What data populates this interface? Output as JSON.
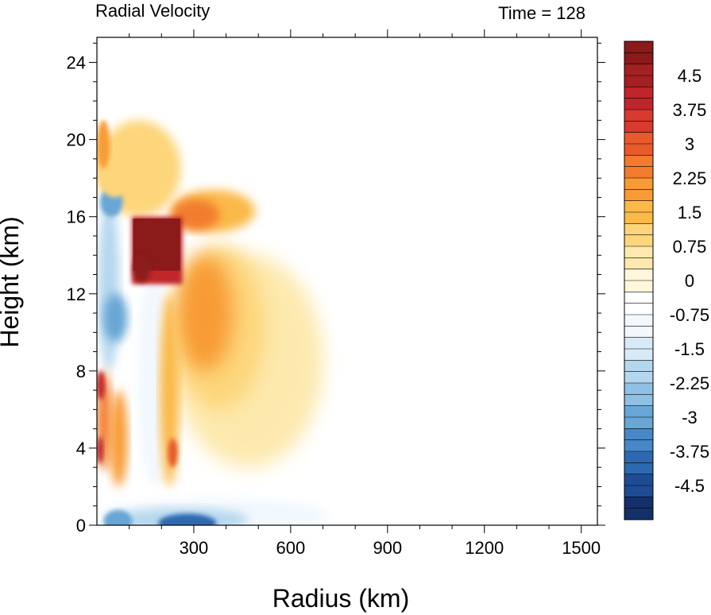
{
  "chart_data": {
    "type": "heatmap",
    "title_left": "Radial Velocity",
    "title_right": "Time = 128",
    "xlabel": "Radius (km)",
    "ylabel": "Height (km)",
    "xlim": [
      0,
      1550
    ],
    "ylim": [
      0,
      25.3
    ],
    "xticks": [
      300,
      600,
      900,
      1200,
      1500
    ],
    "yticks": [
      0,
      4,
      8,
      12,
      16,
      20,
      24
    ],
    "colorbar": {
      "labels": [
        "4.5",
        "3.75",
        "3",
        "2.25",
        "1.5",
        "0.75",
        "0",
        "-0.75",
        "-1.5",
        "-2.25",
        "-3",
        "-3.75",
        "-4.5"
      ],
      "label_values": [
        4.5,
        3.75,
        3,
        2.25,
        1.5,
        0.75,
        0,
        -0.75,
        -1.5,
        -2.25,
        -3,
        -3.75,
        -4.5
      ],
      "min": -5.25,
      "max": 5.25,
      "step": 0.25,
      "colors_high_to_low": [
        "#8b1a1a",
        "#a52022",
        "#c0252a",
        "#d73a2e",
        "#e85a2c",
        "#f27b2e",
        "#f89b36",
        "#fbb94a",
        "#fdd57a",
        "#fde9ad",
        "#fff6db",
        "#ffffff",
        "#f2f8fd",
        "#d8eaf6",
        "#b5d7ee",
        "#8fc1e3",
        "#68a6d6",
        "#4788c6",
        "#2d69b0",
        "#1d4c93",
        "#14306c"
      ]
    },
    "features": [
      {
        "name": "strong outflow core",
        "r_km": [
          110,
          260
        ],
        "z_km": [
          13,
          16
        ],
        "value": 5.25
      },
      {
        "name": "upper outflow anvil",
        "r_km": [
          260,
          700
        ],
        "z_km": [
          5,
          17
        ],
        "value": 1.5
      },
      {
        "name": "low-level inflow layer",
        "r_km": [
          0,
          700
        ],
        "z_km": [
          0,
          1
        ],
        "value": -3.5
      },
      {
        "name": "mid-level eyewall inflow",
        "r_km": [
          0,
          110
        ],
        "z_km": [
          8,
          17
        ],
        "value": -3
      },
      {
        "name": "lower eyewall outflow",
        "r_km": [
          0,
          110
        ],
        "z_km": [
          2,
          8
        ],
        "value": 3
      }
    ]
  }
}
